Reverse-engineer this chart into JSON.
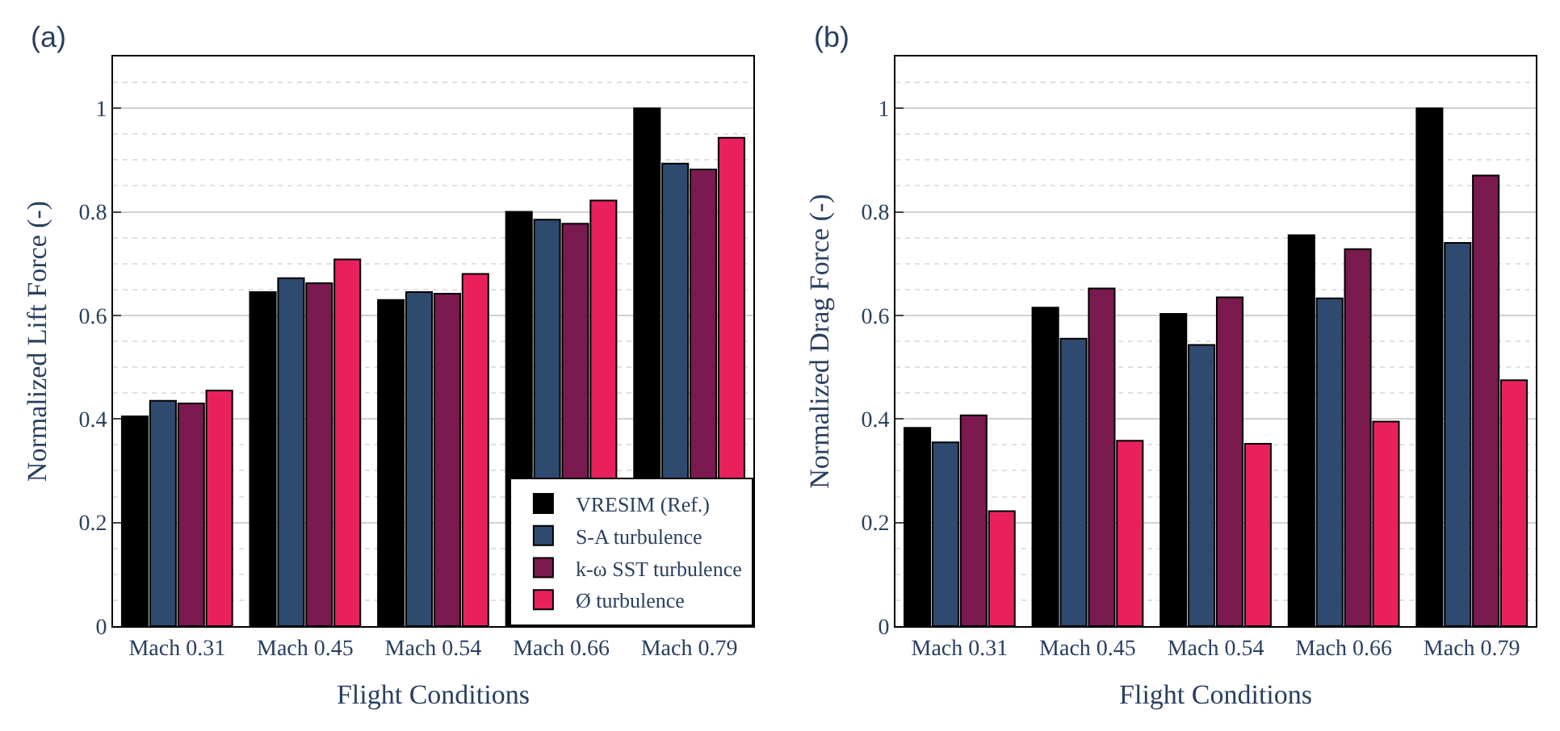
{
  "chart_data": [
    {
      "type": "bar",
      "title": "(a)",
      "xlabel": "Flight Conditions",
      "ylabel": "Normalized Lift Force (-)",
      "categories": [
        "Mach 0.31",
        "Mach 0.45",
        "Mach 0.54",
        "Mach 0.66",
        "Mach 0.79"
      ],
      "ylim": [
        0,
        1.1
      ],
      "yticks": [
        0,
        0.2,
        0.4,
        0.6,
        0.8,
        1
      ],
      "grid": true,
      "legend": "bottom right",
      "series": [
        {
          "name": "VRESIM (Ref.)",
          "color": "#000000",
          "values": [
            0.405,
            0.645,
            0.63,
            0.8,
            1.0
          ]
        },
        {
          "name": "S-A turbulence",
          "color": "#2e4a6e",
          "values": [
            0.435,
            0.672,
            0.645,
            0.785,
            0.893
          ]
        },
        {
          "name": "k-ω SST turbulence",
          "color": "#7a1a4e",
          "values": [
            0.43,
            0.662,
            0.642,
            0.777,
            0.882
          ]
        },
        {
          "name": "Ø turbulence",
          "color": "#e8215e",
          "values": [
            0.455,
            0.708,
            0.68,
            0.822,
            0.943
          ]
        }
      ]
    },
    {
      "type": "bar",
      "title": "(b)",
      "xlabel": "Flight Conditions",
      "ylabel": "Normalized Drag Force (-)",
      "categories": [
        "Mach 0.31",
        "Mach 0.45",
        "Mach 0.54",
        "Mach 0.66",
        "Mach 0.79"
      ],
      "ylim": [
        0,
        1.1
      ],
      "yticks": [
        0,
        0.2,
        0.4,
        0.6,
        0.8,
        1
      ],
      "grid": true,
      "series": [
        {
          "color": "#000000",
          "values": [
            0.383,
            0.615,
            0.603,
            0.755,
            1.0
          ]
        },
        {
          "color": "#2e4a6e",
          "values": [
            0.355,
            0.555,
            0.543,
            0.633,
            0.74
          ]
        },
        {
          "color": "#7a1a4e",
          "values": [
            0.407,
            0.652,
            0.635,
            0.728,
            0.87
          ]
        },
        {
          "color": "#e8215e",
          "values": [
            0.222,
            0.358,
            0.352,
            0.395,
            0.475
          ]
        }
      ]
    }
  ]
}
